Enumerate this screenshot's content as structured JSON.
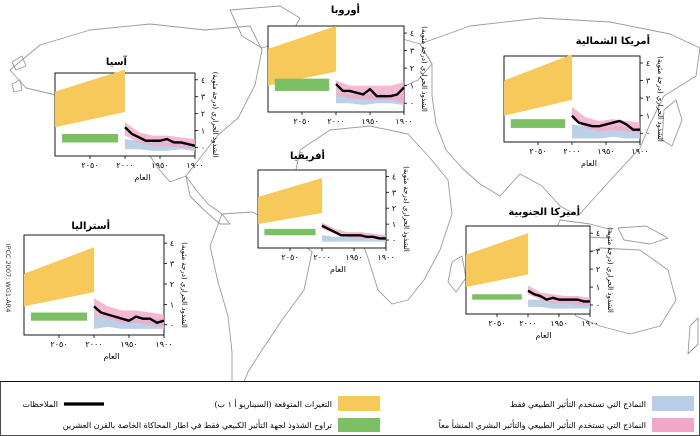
{
  "figure": {
    "copyright": "IPCC 2007: WG1-AR4",
    "colors": {
      "natural": "#b8cde6",
      "combined": "#f2a7c9",
      "projection": "#f7c95a",
      "attribution": "#7cc064",
      "observations": "#000000",
      "map": "#9a9a9a"
    }
  },
  "legend": {
    "natural": "النماذج التي تستخدم التأثير الطبيعي فقط",
    "combined": "النماذج التي تستخدم التأثير الطبيعي والتأثير البشري المنشأ معاً",
    "projection": "التغيرات المتوقعة (السيناريو أ ١ ب)",
    "attribution": "تراوح الشذوذ لجهة التأثير الكبيعي فقط في اطار المحاكاة الخاصة بالقرن العشرين",
    "observations": "الملاحظات"
  },
  "chart_data": [
    {
      "type": "line",
      "title": "أوروبا",
      "xlabel": "",
      "ylabel": "الشذوذ الحراري (درجة مئوية)",
      "xlim": [
        1900,
        2100
      ],
      "ylim": [
        0,
        4
      ],
      "xticks": [
        "١٩٠٠",
        "١٩٥٠",
        "٢٠٠٠",
        "٢٠٥٠"
      ],
      "yticks": [
        "٠",
        "١",
        "٢",
        "٣",
        "٤"
      ],
      "projection_range": [
        [
          2000,
          1.8,
          4.4
        ],
        [
          2100,
          1.0,
          3.1
        ]
      ],
      "attribution_range": [
        0.7,
        1.4
      ],
      "natural": [
        [
          1900,
          -0.1,
          0.5
        ],
        [
          1920,
          0.0,
          0.5
        ],
        [
          1940,
          0.0,
          0.6
        ],
        [
          1960,
          -0.1,
          0.5
        ],
        [
          1980,
          0.0,
          0.5
        ],
        [
          2000,
          0.0,
          0.6
        ]
      ],
      "combined": [
        [
          1900,
          0.0,
          1.2
        ],
        [
          1920,
          0.2,
          1.0
        ],
        [
          1940,
          0.2,
          1.0
        ],
        [
          1960,
          0.2,
          1.0
        ],
        [
          1980,
          0.3,
          1.0
        ],
        [
          2000,
          0.5,
          1.3
        ]
      ],
      "observations": [
        [
          1900,
          0.9
        ],
        [
          1910,
          0.5
        ],
        [
          1920,
          0.4
        ],
        [
          1930,
          0.4
        ],
        [
          1940,
          0.4
        ],
        [
          1950,
          0.8
        ],
        [
          1960,
          0.5
        ],
        [
          1970,
          0.6
        ],
        [
          1980,
          0.7
        ],
        [
          1990,
          0.7
        ],
        [
          2000,
          1.1
        ]
      ]
    },
    {
      "type": "line",
      "title": "أمريكا الشمالية",
      "xlabel": "العام",
      "ylabel": "الشذوذ الحراري (درجة مئوية)",
      "xlim": [
        1900,
        2100
      ],
      "ylim": [
        0,
        4
      ],
      "xticks": [
        "١٩٠٠",
        "١٩٥٠",
        "٢٠٠٠",
        "٢٠٥٠"
      ],
      "yticks": [
        "٠",
        "١",
        "٢",
        "٣",
        "٤"
      ],
      "projection_range": [
        [
          2000,
          1.9,
          4.5
        ],
        [
          2100,
          1.0,
          3.0
        ]
      ],
      "attribution_range": [
        0.3,
        0.8
      ],
      "natural": [
        [
          1900,
          -0.3,
          0.3
        ],
        [
          1920,
          -0.3,
          0.4
        ],
        [
          1940,
          -0.2,
          0.4
        ],
        [
          1960,
          -0.3,
          0.3
        ],
        [
          1980,
          -0.3,
          0.4
        ],
        [
          2000,
          -0.3,
          0.5
        ]
      ],
      "combined": [
        [
          1900,
          0.0,
          0.6
        ],
        [
          1920,
          0.1,
          0.7
        ],
        [
          1940,
          0.2,
          0.8
        ],
        [
          1960,
          0.1,
          0.7
        ],
        [
          1980,
          0.3,
          0.9
        ],
        [
          2000,
          0.8,
          1.5
        ]
      ],
      "observations": [
        [
          1900,
          0.2
        ],
        [
          1910,
          0.2
        ],
        [
          1920,
          0.5
        ],
        [
          1930,
          0.7
        ],
        [
          1940,
          0.6
        ],
        [
          1950,
          0.5
        ],
        [
          1960,
          0.4
        ],
        [
          1970,
          0.4
        ],
        [
          1980,
          0.5
        ],
        [
          1990,
          0.6
        ],
        [
          2000,
          1.0
        ]
      ]
    },
    {
      "type": "line",
      "title": "آسيا",
      "xlabel": "العام",
      "ylabel": "الشذوذ الحراري (درجة مئوية)",
      "xlim": [
        1900,
        2100
      ],
      "ylim": [
        0,
        4
      ],
      "xticks": [
        "١٩٠٠",
        "١٩٥٠",
        "٢٠٠٠",
        "٢٠٥٠"
      ],
      "yticks": [
        "٠",
        "١",
        "٢",
        "٣",
        "٤"
      ],
      "projection_range": [
        [
          2000,
          2.1,
          4.6
        ],
        [
          2100,
          1.2,
          3.3
        ]
      ],
      "attribution_range": [
        0.3,
        0.8
      ],
      "natural": [
        [
          1900,
          -0.2,
          0.3
        ],
        [
          1920,
          -0.1,
          0.4
        ],
        [
          1940,
          -0.2,
          0.3
        ],
        [
          1960,
          -0.2,
          0.3
        ],
        [
          1980,
          -0.1,
          0.4
        ],
        [
          2000,
          -0.1,
          0.5
        ]
      ],
      "combined": [
        [
          1900,
          -0.1,
          0.5
        ],
        [
          1920,
          0.0,
          0.6
        ],
        [
          1940,
          0.1,
          0.7
        ],
        [
          1960,
          0.1,
          0.7
        ],
        [
          1980,
          0.3,
          0.9
        ],
        [
          2000,
          0.7,
          1.5
        ]
      ],
      "observations": [
        [
          1900,
          0.1
        ],
        [
          1910,
          0.2
        ],
        [
          1920,
          0.3
        ],
        [
          1930,
          0.3
        ],
        [
          1940,
          0.5
        ],
        [
          1950,
          0.4
        ],
        [
          1960,
          0.4
        ],
        [
          1970,
          0.4
        ],
        [
          1980,
          0.6
        ],
        [
          1990,
          0.8
        ],
        [
          2000,
          1.2
        ]
      ]
    },
    {
      "type": "line",
      "title": "أفريقيا",
      "xlabel": "العام",
      "ylabel": "الشذوذ الحراري (درجة مئوية)",
      "xlim": [
        1900,
        2100
      ],
      "ylim": [
        0,
        4
      ],
      "xticks": [
        "١٩٠٠",
        "١٩٥٠",
        "٢٠٠٠",
        "٢٠٥٠"
      ],
      "yticks": [
        "٠",
        "١",
        "٢",
        "٣",
        "٤"
      ],
      "projection_range": [
        [
          2000,
          1.7,
          3.9
        ],
        [
          2100,
          1.0,
          2.7
        ]
      ],
      "attribution_range": [
        0.3,
        0.7
      ],
      "natural": [
        [
          1900,
          -0.1,
          0.2
        ],
        [
          1920,
          -0.1,
          0.2
        ],
        [
          1940,
          -0.1,
          0.2
        ],
        [
          1960,
          -0.1,
          0.2
        ],
        [
          1980,
          -0.1,
          0.2
        ],
        [
          2000,
          -0.1,
          0.3
        ]
      ],
      "combined": [
        [
          1900,
          0.0,
          0.3
        ],
        [
          1920,
          0.1,
          0.4
        ],
        [
          1940,
          0.1,
          0.5
        ],
        [
          1960,
          0.2,
          0.5
        ],
        [
          1980,
          0.4,
          0.7
        ],
        [
          2000,
          0.7,
          1.1
        ]
      ],
      "observations": [
        [
          1900,
          0.1
        ],
        [
          1910,
          0.1
        ],
        [
          1920,
          0.2
        ],
        [
          1930,
          0.2
        ],
        [
          1940,
          0.3
        ],
        [
          1950,
          0.3
        ],
        [
          1960,
          0.3
        ],
        [
          1970,
          0.3
        ],
        [
          1980,
          0.5
        ],
        [
          1990,
          0.7
        ],
        [
          2000,
          0.9
        ]
      ]
    },
    {
      "type": "line",
      "title": "أستراليا",
      "xlabel": "العام",
      "ylabel": "الشذوذ الحراري (درجة مئوية)",
      "xlim": [
        1900,
        2100
      ],
      "ylim": [
        0,
        4
      ],
      "xticks": [
        "١٩٠٠",
        "١٩٥٠",
        "٢٠٠٠",
        "٢٠٥٠"
      ],
      "yticks": [
        "٠",
        "١",
        "٢",
        "٣",
        "٤"
      ],
      "projection_range": [
        [
          2000,
          1.6,
          3.8
        ],
        [
          2100,
          0.9,
          2.5
        ]
      ],
      "attribution_range": [
        0.2,
        0.6
      ],
      "natural": [
        [
          1900,
          -0.2,
          0.3
        ],
        [
          1920,
          -0.2,
          0.3
        ],
        [
          1940,
          -0.2,
          0.3
        ],
        [
          1960,
          -0.2,
          0.3
        ],
        [
          1980,
          -0.1,
          0.4
        ],
        [
          2000,
          -0.2,
          0.5
        ]
      ],
      "combined": [
        [
          1900,
          -0.1,
          0.5
        ],
        [
          1920,
          0.0,
          0.6
        ],
        [
          1940,
          0.1,
          0.7
        ],
        [
          1960,
          0.1,
          0.7
        ],
        [
          1980,
          0.3,
          0.9
        ],
        [
          2000,
          0.5,
          1.3
        ]
      ],
      "observations": [
        [
          1900,
          0.2
        ],
        [
          1910,
          0.1
        ],
        [
          1920,
          0.3
        ],
        [
          1930,
          0.3
        ],
        [
          1940,
          0.4
        ],
        [
          1950,
          0.2
        ],
        [
          1960,
          0.3
        ],
        [
          1970,
          0.4
        ],
        [
          1980,
          0.5
        ],
        [
          1990,
          0.6
        ],
        [
          2000,
          0.9
        ]
      ]
    },
    {
      "type": "line",
      "title": "أميركا الجنوبية",
      "xlabel": "العام",
      "ylabel": "الشذوذ الحراري (درجة مئوية)",
      "xlim": [
        1900,
        2100
      ],
      "ylim": [
        0,
        4
      ],
      "xticks": [
        "١٩٠٠",
        "١٩٥٠",
        "٢٠٠٠",
        "٢٠٥٠"
      ],
      "yticks": [
        "٠",
        "١",
        "٢",
        "٣",
        "٤"
      ],
      "projection_range": [
        [
          2000,
          1.7,
          4.0
        ],
        [
          2100,
          1.0,
          2.8
        ]
      ],
      "attribution_range": [
        0.3,
        0.6
      ],
      "natural": [
        [
          1900,
          -0.2,
          0.2
        ],
        [
          1920,
          -0.2,
          0.2
        ],
        [
          1940,
          -0.2,
          0.2
        ],
        [
          1960,
          -0.2,
          0.2
        ],
        [
          1980,
          -0.1,
          0.3
        ],
        [
          2000,
          -0.1,
          0.3
        ]
      ],
      "combined": [
        [
          1900,
          0.0,
          0.4
        ],
        [
          1920,
          0.0,
          0.5
        ],
        [
          1940,
          0.1,
          0.5
        ],
        [
          1960,
          0.1,
          0.6
        ],
        [
          1980,
          0.3,
          0.7
        ],
        [
          2000,
          0.6,
          1.1
        ]
      ],
      "observations": [
        [
          1900,
          0.2
        ],
        [
          1910,
          0.2
        ],
        [
          1920,
          0.3
        ],
        [
          1930,
          0.3
        ],
        [
          1940,
          0.3
        ],
        [
          1950,
          0.3
        ],
        [
          1960,
          0.4
        ],
        [
          1970,
          0.3
        ],
        [
          1980,
          0.5
        ],
        [
          1990,
          0.6
        ],
        [
          2000,
          0.8
        ]
      ]
    }
  ]
}
